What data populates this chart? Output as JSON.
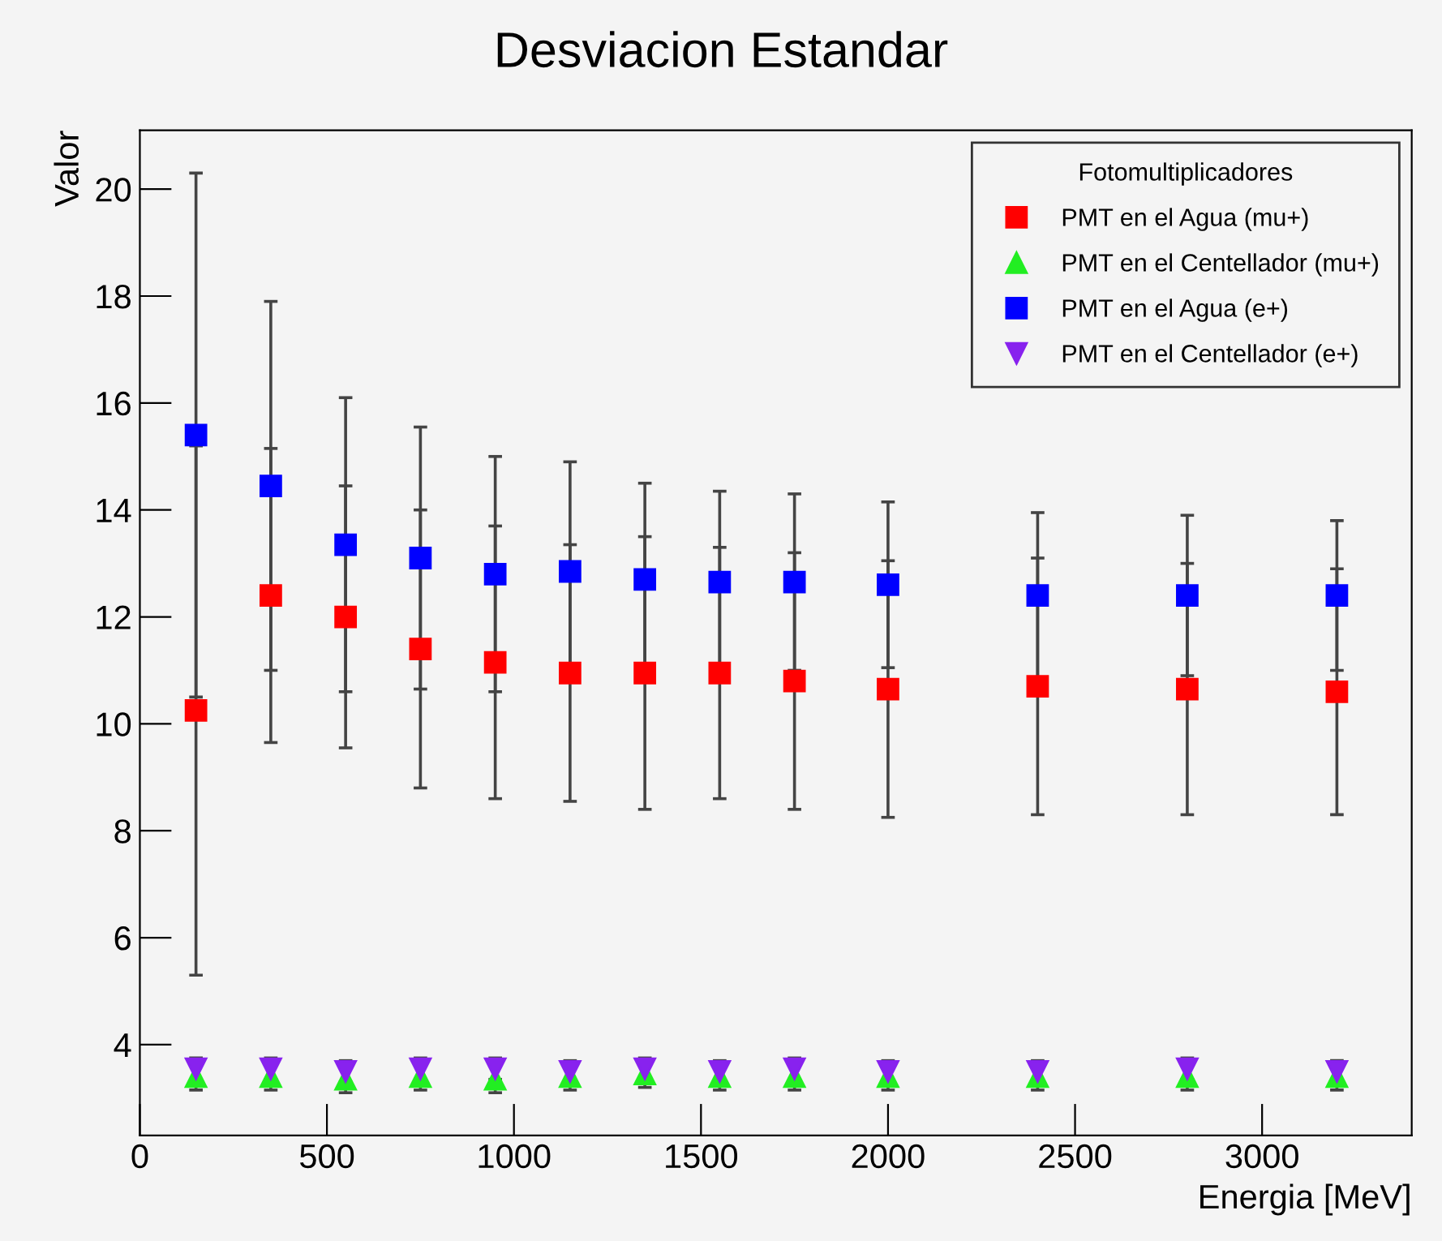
{
  "chart_data": {
    "type": "scatter",
    "title": "Desviacion Estandar",
    "xlabel": "Energia [MeV]",
    "ylabel": "Valor",
    "legend_title": "Fotomultiplicadores",
    "x": [
      150,
      350,
      550,
      750,
      950,
      1150,
      1350,
      1550,
      1750,
      2000,
      2400,
      2800,
      3200
    ],
    "series": [
      {
        "name": "PMT en el Agua (mu+)",
        "color": "#ff0000",
        "marker": "square",
        "values": [
          10.25,
          12.4,
          12.0,
          11.4,
          11.15,
          10.95,
          10.95,
          10.95,
          10.8,
          10.65,
          10.7,
          10.65,
          10.6
        ],
        "errors": [
          4.95,
          2.75,
          2.45,
          2.6,
          2.55,
          2.4,
          2.55,
          2.35,
          2.4,
          2.4,
          2.4,
          2.35,
          2.3
        ]
      },
      {
        "name": "PMT en el Centellador (mu+)",
        "color": "#22ee22",
        "marker": "triangle",
        "values": [
          3.4,
          3.4,
          3.35,
          3.4,
          3.35,
          3.4,
          3.45,
          3.4,
          3.4,
          3.4,
          3.4,
          3.4,
          3.4
        ],
        "errors": [
          0.25,
          0.25,
          0.25,
          0.25,
          0.25,
          0.25,
          0.25,
          0.25,
          0.25,
          0.25,
          0.25,
          0.25,
          0.25
        ]
      },
      {
        "name": "PMT en el Agua (e+)",
        "color": "#0000ff",
        "marker": "square",
        "values": [
          15.4,
          14.45,
          13.35,
          13.1,
          12.8,
          12.85,
          12.7,
          12.65,
          12.65,
          12.6,
          12.4,
          12.4,
          12.4
        ],
        "errors": [
          4.9,
          3.45,
          2.75,
          2.45,
          2.2,
          2.05,
          1.8,
          1.7,
          1.65,
          1.55,
          1.55,
          1.5,
          1.4
        ]
      },
      {
        "name": "PMT en el Centellador (e+)",
        "color": "#8822ee",
        "values": [
          3.55,
          3.55,
          3.5,
          3.55,
          3.55,
          3.5,
          3.55,
          3.5,
          3.55,
          3.5,
          3.5,
          3.55,
          3.5
        ],
        "errors": [
          0.2,
          0.2,
          0.2,
          0.2,
          0.2,
          0.2,
          0.2,
          0.2,
          0.2,
          0.2,
          0.2,
          0.2,
          0.2
        ]
      }
    ],
    "xlim": [
      0,
      3400
    ],
    "xticks": [
      0,
      500,
      1000,
      1500,
      2000,
      2500,
      3000
    ],
    "ylim": [
      2.3,
      21.1
    ],
    "yticks": [
      4,
      6,
      8,
      10,
      12,
      14,
      16,
      18,
      20
    ],
    "grid": false,
    "legend": "top right"
  }
}
